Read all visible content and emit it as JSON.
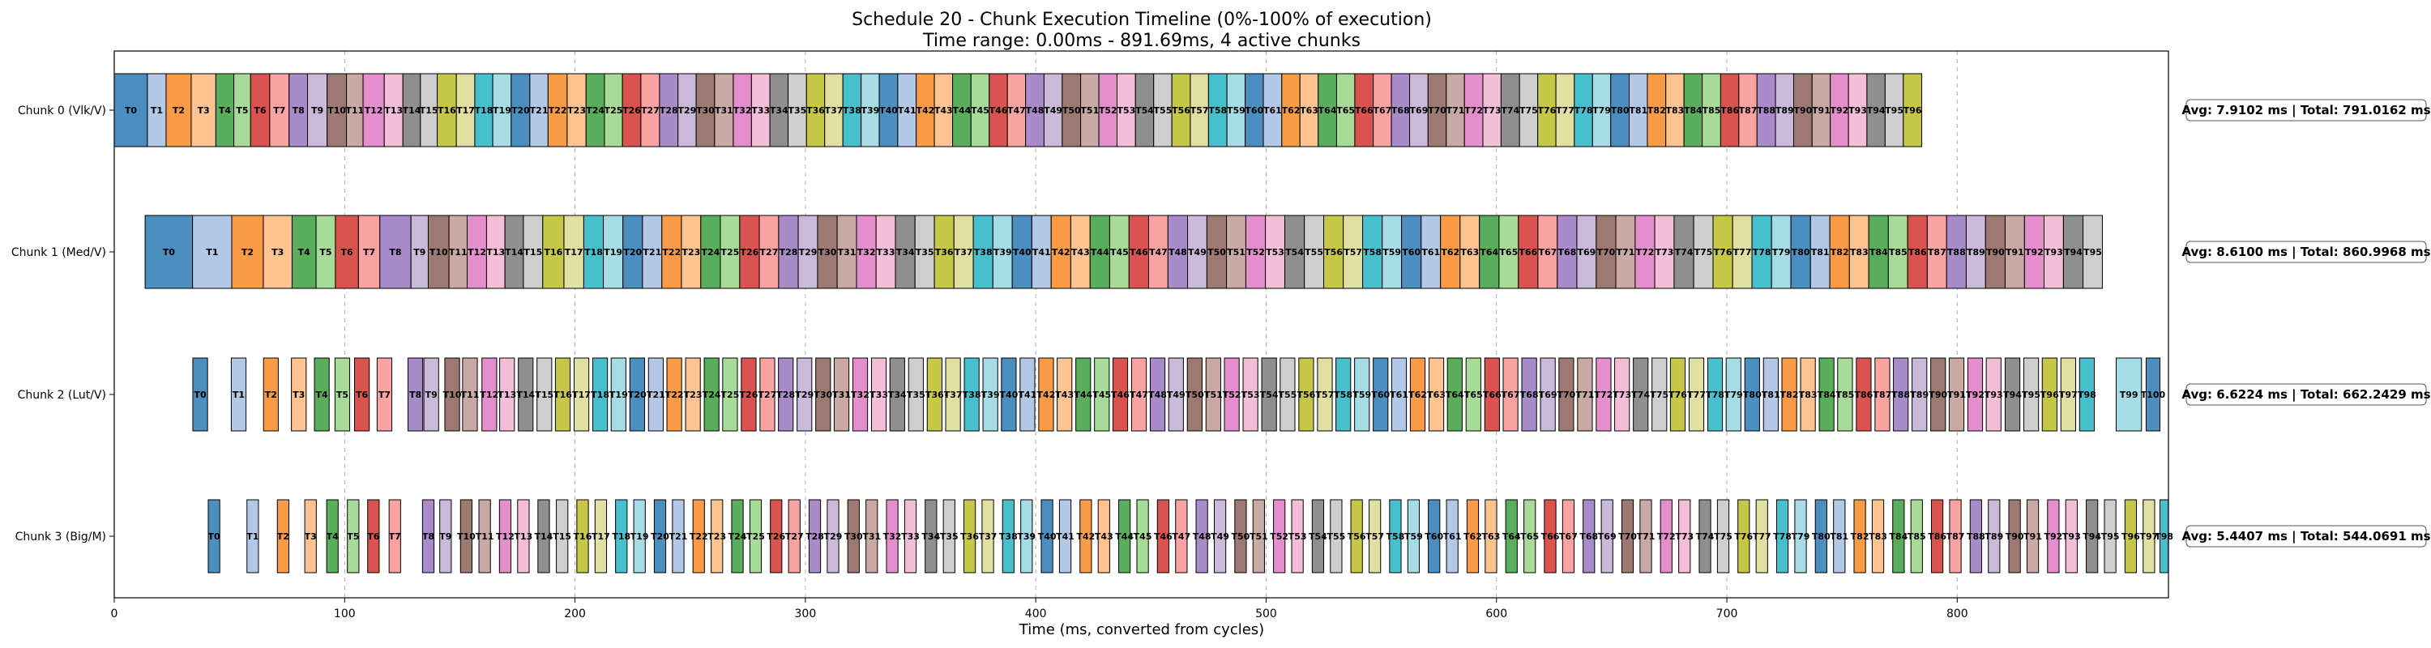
{
  "chart_data": {
    "type": "gantt",
    "title": "Schedule 20 - Chunk Execution Timeline (0%-100% of execution)",
    "subtitle": "Time range: 0.00ms - 891.69ms, 4 active chunks",
    "xlabel": "Time (ms, converted from cycles)",
    "xlim": [
      0,
      891.69
    ],
    "xticks": [
      0,
      100,
      200,
      300,
      400,
      500,
      600,
      700,
      800
    ],
    "grid": "x-dashed",
    "palette": [
      "#4c8ebf",
      "#b3c8e6",
      "#fb9b46",
      "#fdc391",
      "#5aad5a",
      "#a8db97",
      "#d9534f",
      "#fba3a3",
      "#a98bc9",
      "#cbb9da",
      "#9c7a72",
      "#c8a9a3",
      "#e48fcb",
      "#f5bed8",
      "#8f8f8f",
      "#cecece",
      "#c6c747",
      "#e1e0a2",
      "#48bfcd",
      "#a6dce6"
    ],
    "chunks": [
      {
        "label": "Chunk 0 (Vlk/V)",
        "stats": "Avg: 7.9102 ms | Total: 791.0162 ms",
        "starts": [
          0,
          14.4,
          22.5,
          33.4,
          44.1,
          51.9,
          59.2,
          67.5,
          75.9,
          83.9,
          92.4,
          100.8,
          108.0,
          117.2,
          125.3,
          132.9,
          140.2,
          148.5,
          156.5,
          164.3,
          172.3,
          180.4,
          188.3,
          196.6,
          204.8,
          212.8,
          220.6,
          228.6,
          236.7,
          244.7,
          252.6,
          260.6,
          268.7,
          276.6,
          284.6,
          292.5,
          300.5,
          308.4,
          316.3,
          324.2,
          332.1,
          340.1,
          348.1,
          356.0,
          363.9,
          371.9,
          379.8,
          387.7,
          395.6,
          403.6,
          411.5,
          419.5,
          427.4,
          435.3,
          443.3,
          451.2,
          459.1,
          467.1,
          475.0,
          483.0,
          490.9,
          498.8,
          506.8,
          514.7,
          522.6,
          530.6,
          538.5,
          546.5,
          554.4,
          562.3,
          570.3,
          578.2,
          586.1,
          594.1,
          602.0,
          610.0,
          617.9,
          625.8,
          633.8,
          641.7,
          649.6,
          657.6,
          665.5,
          673.5,
          681.4,
          689.3,
          697.3,
          705.2,
          713.1,
          721.1,
          729.0,
          737.0,
          744.9,
          752.8,
          760.8,
          768.7,
          776.6
        ],
        "ends": [
          14.4,
          22.5,
          33.4,
          44.1,
          51.9,
          59.2,
          67.5,
          75.9,
          83.9,
          92.4,
          100.8,
          108.0,
          117.2,
          125.3,
          132.9,
          140.2,
          148.5,
          156.5,
          164.3,
          172.3,
          180.4,
          188.3,
          196.6,
          204.8,
          212.8,
          220.6,
          228.6,
          236.7,
          244.7,
          252.6,
          260.6,
          268.7,
          276.6,
          284.6,
          292.5,
          300.5,
          308.4,
          316.3,
          324.2,
          332.1,
          340.1,
          348.1,
          356.0,
          363.9,
          371.9,
          379.8,
          387.7,
          395.6,
          403.6,
          411.5,
          419.5,
          427.4,
          435.3,
          443.3,
          451.2,
          459.1,
          467.1,
          475.0,
          483.0,
          490.9,
          498.8,
          506.8,
          514.7,
          522.6,
          530.6,
          538.5,
          546.5,
          554.4,
          562.3,
          570.3,
          578.2,
          586.1,
          594.1,
          602.0,
          610.0,
          617.9,
          625.8,
          633.8,
          641.7,
          649.6,
          657.6,
          665.5,
          673.5,
          681.4,
          689.3,
          697.3,
          705.2,
          713.1,
          721.1,
          729.0,
          737.0,
          744.9,
          752.8,
          760.8,
          768.7,
          776.6,
          784.6
        ]
      },
      {
        "label": "Chunk 1 (Med/V)",
        "stats": "Avg: 8.6100 ms | Total: 860.9968 ms",
        "starts": [
          13.4,
          34.0,
          51.0,
          64.7,
          77.2,
          87.6,
          96.0,
          106.0,
          115.3,
          128.8,
          136.3,
          145.3,
          153.2,
          161.6,
          169.6,
          177.6,
          186.0,
          195.2,
          203.8,
          212.3,
          220.8,
          229.3,
          237.7,
          246.2,
          254.6,
          263.1,
          271.5,
          280.0,
          288.4,
          296.9,
          305.3,
          313.8,
          322.2,
          330.7,
          339.1,
          347.6,
          356.0,
          364.5,
          372.9,
          381.4,
          389.8,
          398.3,
          406.7,
          415.2,
          423.6,
          432.1,
          440.5,
          449.0,
          457.4,
          465.9,
          474.3,
          482.8,
          491.2,
          499.7,
          508.1,
          516.6,
          525.0,
          533.5,
          541.9,
          550.4,
          558.8,
          567.3,
          575.7,
          584.2,
          592.6,
          601.1,
          609.5,
          618.0,
          626.4,
          634.9,
          643.3,
          651.8,
          660.2,
          668.7,
          677.1,
          685.6,
          694.0,
          702.5,
          710.9,
          719.4,
          727.8,
          736.3,
          744.7,
          753.2,
          761.6,
          770.1,
          778.5,
          787.0,
          795.4,
          803.9,
          812.3,
          820.8,
          829.2,
          837.7,
          846.1,
          854.6
        ],
        "ends": [
          34.0,
          51.0,
          64.7,
          77.2,
          87.6,
          96.0,
          106.0,
          115.3,
          128.8,
          136.3,
          145.3,
          153.2,
          161.6,
          169.6,
          177.6,
          186.0,
          195.2,
          203.8,
          212.3,
          220.8,
          229.3,
          237.7,
          246.2,
          254.6,
          263.1,
          271.5,
          280.0,
          288.4,
          296.9,
          305.3,
          313.8,
          322.2,
          330.7,
          339.1,
          347.6,
          356.0,
          364.5,
          372.9,
          381.4,
          389.8,
          398.3,
          406.7,
          415.2,
          423.6,
          432.1,
          440.5,
          449.0,
          457.4,
          465.9,
          474.3,
          482.8,
          491.2,
          499.7,
          508.1,
          516.6,
          525.0,
          533.5,
          541.9,
          550.4,
          558.8,
          567.3,
          575.7,
          584.2,
          592.6,
          601.1,
          609.5,
          618.0,
          626.4,
          634.9,
          643.3,
          651.8,
          660.2,
          668.7,
          677.1,
          685.6,
          694.0,
          702.5,
          710.9,
          719.4,
          727.8,
          736.3,
          744.7,
          753.2,
          761.6,
          770.1,
          778.5,
          787.0,
          795.4,
          803.9,
          812.3,
          820.8,
          829.2,
          837.7,
          846.1,
          854.6,
          863.0
        ]
      },
      {
        "label": "Chunk 2 (Lut/V)",
        "stats": "Avg: 6.6224 ms | Total: 662.2429 ms",
        "starts": [
          34.1,
          50.8,
          64.8,
          76.9,
          86.9,
          95.8,
          104.3,
          114.1,
          127.5,
          134.4,
          143.5,
          151.2,
          159.6,
          167.3,
          175.4,
          183.5,
          191.5,
          199.6,
          207.7,
          215.7,
          223.8,
          231.9,
          239.9,
          248.0,
          256.1,
          264.1,
          272.2,
          280.3,
          288.3,
          296.4,
          304.5,
          312.5,
          320.6,
          328.7,
          336.7,
          344.8,
          352.9,
          360.9,
          369.0,
          377.1,
          385.1,
          393.2,
          401.3,
          409.3,
          417.4,
          425.5,
          433.5,
          441.6,
          449.7,
          457.7,
          465.8,
          473.9,
          481.9,
          490.0,
          498.1,
          506.1,
          514.2,
          522.3,
          530.3,
          538.4,
          546.5,
          554.5,
          562.6,
          570.7,
          578.7,
          586.8,
          594.9,
          602.9,
          611.0,
          619.1,
          627.1,
          635.2,
          643.3,
          651.3,
          659.4,
          667.5,
          675.5,
          683.6,
          691.7,
          699.7,
          707.8,
          715.9,
          723.9,
          732.0,
          740.1,
          748.1,
          756.2,
          764.3,
          772.3,
          780.4,
          788.5,
          796.5,
          804.6,
          812.6,
          820.8,
          828.9,
          836.9,
          845.0,
          853.1,
          869.0,
          882.0
        ],
        "ends": [
          40.5,
          57.2,
          71.2,
          83.3,
          93.3,
          102.2,
          110.7,
          120.5,
          133.9,
          140.8,
          149.9,
          157.6,
          166.0,
          173.7,
          181.8,
          189.9,
          197.9,
          206.0,
          214.1,
          222.1,
          230.2,
          238.3,
          246.3,
          254.4,
          262.5,
          270.5,
          278.6,
          286.7,
          294.7,
          302.8,
          310.9,
          318.9,
          327.0,
          335.1,
          343.1,
          351.2,
          359.3,
          367.3,
          375.4,
          383.5,
          391.5,
          399.6,
          407.7,
          415.7,
          423.8,
          431.9,
          439.9,
          448.0,
          456.1,
          464.1,
          472.2,
          480.3,
          488.3,
          496.4,
          504.5,
          512.5,
          520.6,
          528.7,
          536.7,
          544.8,
          552.9,
          560.9,
          569.0,
          577.1,
          585.1,
          593.2,
          601.3,
          609.3,
          617.4,
          625.5,
          633.5,
          641.6,
          649.7,
          657.7,
          665.8,
          673.9,
          681.9,
          690.0,
          698.1,
          706.1,
          714.2,
          722.3,
          730.3,
          738.4,
          746.5,
          754.5,
          762.6,
          770.7,
          778.7,
          786.8,
          794.9,
          802.9,
          811.0,
          819.0,
          827.2,
          835.3,
          843.3,
          851.4,
          859.5,
          880.0,
          888.0
        ]
      },
      {
        "label": "Chunk 3 (Big/M)",
        "stats": "Avg: 5.4407 ms | Total: 544.0691 ms",
        "starts": [
          40.8,
          57.6,
          70.8,
          82.7,
          92.2,
          101.2,
          110.0,
          119.3,
          133.8,
          141.3,
          150.3,
          158.3,
          167.2,
          175.1,
          183.9,
          191.9,
          200.8,
          208.7,
          217.6,
          225.5,
          234.4,
          242.3,
          251.2,
          259.1,
          268.0,
          275.9,
          284.8,
          292.7,
          301.6,
          309.5,
          318.4,
          326.3,
          335.2,
          343.1,
          352.0,
          359.9,
          368.8,
          376.7,
          385.6,
          393.5,
          402.4,
          410.3,
          419.2,
          427.1,
          436.0,
          443.9,
          452.8,
          460.7,
          469.6,
          477.5,
          486.4,
          494.3,
          503.2,
          511.1,
          520.0,
          527.9,
          536.8,
          544.7,
          553.6,
          561.5,
          570.4,
          578.3,
          587.2,
          595.1,
          604.0,
          611.9,
          620.8,
          628.7,
          637.6,
          645.5,
          654.4,
          662.3,
          671.2,
          679.1,
          688.0,
          695.9,
          704.8,
          712.7,
          721.6,
          729.5,
          738.4,
          746.3,
          755.2,
          763.1,
          772.0,
          779.9,
          788.8,
          796.7,
          805.6,
          813.5,
          822.4,
          830.3,
          839.2,
          847.1,
          856.0,
          863.9,
          872.8,
          880.7,
          888.0
        ],
        "ends": [
          45.8,
          62.6,
          75.8,
          87.7,
          97.2,
          106.2,
          115.0,
          124.3,
          138.8,
          146.3,
          155.3,
          163.3,
          172.2,
          180.1,
          188.9,
          196.9,
          205.8,
          213.7,
          222.6,
          230.5,
          239.4,
          247.3,
          256.2,
          264.1,
          273.0,
          280.9,
          289.8,
          297.7,
          306.6,
          314.5,
          323.4,
          331.3,
          340.2,
          348.1,
          357.0,
          364.9,
          373.8,
          381.7,
          390.6,
          398.5,
          407.4,
          415.3,
          424.2,
          432.1,
          441.0,
          448.9,
          457.8,
          465.7,
          474.6,
          482.5,
          491.4,
          499.3,
          508.2,
          516.1,
          525.0,
          532.9,
          541.8,
          549.7,
          558.6,
          566.5,
          575.4,
          583.3,
          592.2,
          600.1,
          609.0,
          616.9,
          625.8,
          633.7,
          642.6,
          650.5,
          659.4,
          667.3,
          676.2,
          684.1,
          693.0,
          700.9,
          709.8,
          717.7,
          726.6,
          734.5,
          743.4,
          751.3,
          760.2,
          768.1,
          777.0,
          784.9,
          793.8,
          801.7,
          810.6,
          818.5,
          827.4,
          835.3,
          844.2,
          852.1,
          861.0,
          868.9,
          877.8,
          885.7,
          891.6
        ]
      }
    ]
  }
}
